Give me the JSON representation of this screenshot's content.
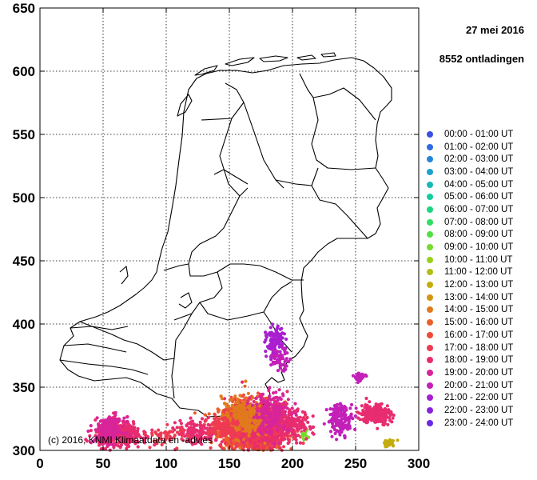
{
  "header": {
    "date": "27 mei 2016",
    "count": "8552 ontladingen"
  },
  "copyright": "(c) 2016, KNMI Klimaatdata en -advies",
  "chart_data": {
    "type": "scatter",
    "xlim": [
      0,
      300
    ],
    "ylim": [
      300,
      650
    ],
    "x_ticks": [
      0,
      50,
      100,
      150,
      200,
      250,
      300
    ],
    "y_ticks": [
      300,
      350,
      400,
      450,
      500,
      550,
      600,
      650
    ],
    "grid": true,
    "legend_placement": "right",
    "legend": [
      {
        "label": "00:00 - 01:00 UT",
        "color": "#3b4fe0"
      },
      {
        "label": "01:00 - 02:00 UT",
        "color": "#2f6ae0"
      },
      {
        "label": "02:00 - 03:00 UT",
        "color": "#2586d8"
      },
      {
        "label": "03:00 - 04:00 UT",
        "color": "#1ea0cc"
      },
      {
        "label": "04:00 - 05:00 UT",
        "color": "#18b8b8"
      },
      {
        "label": "05:00 - 06:00 UT",
        "color": "#14cc9c"
      },
      {
        "label": "06:00 - 07:00 UT",
        "color": "#1ad680"
      },
      {
        "label": "07:00 - 08:00 UT",
        "color": "#2ede62"
      },
      {
        "label": "08:00 - 09:00 UT",
        "color": "#52e045"
      },
      {
        "label": "09:00 - 10:00 UT",
        "color": "#78da2c"
      },
      {
        "label": "10:00 - 11:00 UT",
        "color": "#9ad01c"
      },
      {
        "label": "11:00 - 12:00 UT",
        "color": "#b2c012"
      },
      {
        "label": "12:00 - 13:00 UT",
        "color": "#c4ac0e"
      },
      {
        "label": "13:00 - 14:00 UT",
        "color": "#d49410"
      },
      {
        "label": "14:00 - 15:00 UT",
        "color": "#e07a1c"
      },
      {
        "label": "15:00 - 16:00 UT",
        "color": "#ea6028"
      },
      {
        "label": "16:00 - 17:00 UT",
        "color": "#ee4a3a"
      },
      {
        "label": "17:00 - 18:00 UT",
        "color": "#ee3a52"
      },
      {
        "label": "18:00 - 19:00 UT",
        "color": "#e82c70"
      },
      {
        "label": "19:00 - 20:00 UT",
        "color": "#d8249a"
      },
      {
        "label": "20:00 - 21:00 UT",
        "color": "#c220b8"
      },
      {
        "label": "21:00 - 22:00 UT",
        "color": "#a81ed0"
      },
      {
        "label": "22:00 - 23:00 UT",
        "color": "#8a22dc"
      },
      {
        "label": "23:00 - 24:00 UT",
        "color": "#6a28e2"
      }
    ],
    "clusters": [
      {
        "cx": 168,
        "cy": 318,
        "sx": 13,
        "sy": 10,
        "n": 900,
        "color": "#ea6028"
      },
      {
        "cx": 165,
        "cy": 322,
        "sx": 9,
        "sy": 8,
        "n": 500,
        "color": "#ee4a3a"
      },
      {
        "cx": 175,
        "cy": 314,
        "sx": 12,
        "sy": 8,
        "n": 400,
        "color": "#ee3a52"
      },
      {
        "cx": 180,
        "cy": 322,
        "sx": 10,
        "sy": 9,
        "n": 350,
        "color": "#e82c70"
      },
      {
        "cx": 160,
        "cy": 326,
        "sx": 8,
        "sy": 8,
        "n": 250,
        "color": "#e07a1c"
      },
      {
        "cx": 185,
        "cy": 330,
        "sx": 7,
        "sy": 8,
        "n": 200,
        "color": "#d8249a"
      },
      {
        "cx": 62,
        "cy": 313,
        "sx": 9,
        "sy": 5,
        "n": 450,
        "color": "#e82c70"
      },
      {
        "cx": 55,
        "cy": 316,
        "sx": 6,
        "sy": 5,
        "n": 150,
        "color": "#d8249a"
      },
      {
        "cx": 125,
        "cy": 314,
        "sx": 8,
        "sy": 5,
        "n": 150,
        "color": "#e82c70"
      },
      {
        "cx": 145,
        "cy": 318,
        "sx": 6,
        "sy": 5,
        "n": 120,
        "color": "#ee3a52"
      },
      {
        "cx": 186,
        "cy": 385,
        "sx": 3.5,
        "sy": 6,
        "n": 120,
        "color": "#a81ed0"
      },
      {
        "cx": 190,
        "cy": 372,
        "sx": 4,
        "sy": 4,
        "n": 60,
        "color": "#c220b8"
      },
      {
        "cx": 238,
        "cy": 325,
        "sx": 5,
        "sy": 6,
        "n": 150,
        "color": "#c220b8"
      },
      {
        "cx": 266,
        "cy": 329,
        "sx": 6,
        "sy": 4,
        "n": 220,
        "color": "#e82c70"
      },
      {
        "cx": 253,
        "cy": 358,
        "sx": 2.5,
        "sy": 2,
        "n": 30,
        "color": "#c220b8"
      },
      {
        "cx": 276,
        "cy": 306,
        "sx": 3,
        "sy": 1.5,
        "n": 25,
        "color": "#c4ac0e"
      },
      {
        "cx": 210,
        "cy": 312,
        "sx": 2,
        "sy": 2,
        "n": 12,
        "color": "#78da2c"
      },
      {
        "cx": 200,
        "cy": 320,
        "sx": 8,
        "sy": 6,
        "n": 100,
        "color": "#e82c70"
      },
      {
        "cx": 100,
        "cy": 312,
        "sx": 8,
        "sy": 4,
        "n": 50,
        "color": "#ee3a52"
      }
    ]
  }
}
